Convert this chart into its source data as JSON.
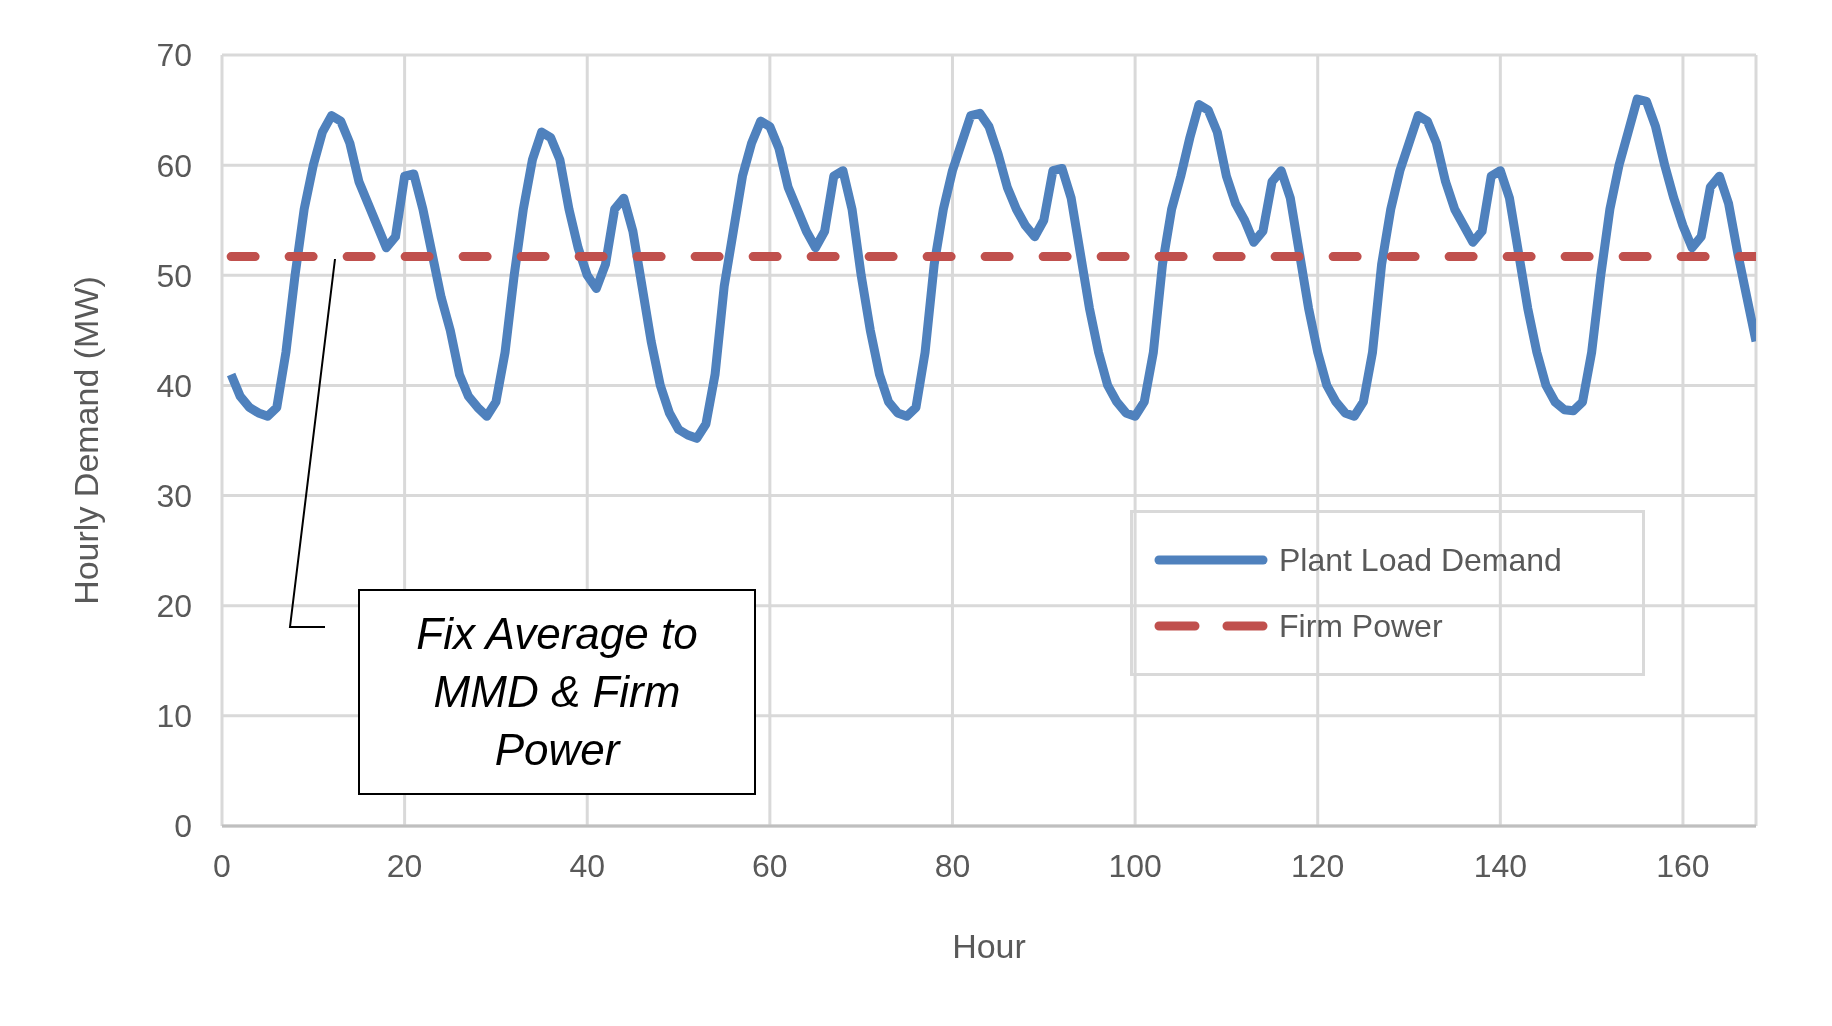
{
  "chart_data": {
    "type": "line",
    "xlabel": "Hour",
    "ylabel": "Hourly Demand (MW)",
    "xlim": [
      0,
      168
    ],
    "xticks": [
      0,
      20,
      40,
      60,
      80,
      100,
      120,
      140,
      160
    ],
    "ylim": [
      0,
      70
    ],
    "yticks": [
      0,
      10,
      20,
      30,
      40,
      50,
      60,
      70
    ],
    "grid": true,
    "legend": "right",
    "line_style": "solid",
    "marker": "none",
    "x": [
      1,
      2,
      3,
      4,
      5,
      6,
      7,
      8,
      9,
      10,
      11,
      12,
      13,
      14,
      15,
      16,
      17,
      18,
      19,
      20,
      21,
      22,
      23,
      24,
      25,
      26,
      27,
      28,
      29,
      30,
      31,
      32,
      33,
      34,
      35,
      36,
      37,
      38,
      39,
      40,
      41,
      42,
      43,
      44,
      45,
      46,
      47,
      48,
      49,
      50,
      51,
      52,
      53,
      54,
      55,
      56,
      57,
      58,
      59,
      60,
      61,
      62,
      63,
      64,
      65,
      66,
      67,
      68,
      69,
      70,
      71,
      72,
      73,
      74,
      75,
      76,
      77,
      78,
      79,
      80,
      81,
      82,
      83,
      84,
      85,
      86,
      87,
      88,
      89,
      90,
      91,
      92,
      93,
      94,
      95,
      96,
      97,
      98,
      99,
      100,
      101,
      102,
      103,
      104,
      105,
      106,
      107,
      108,
      109,
      110,
      111,
      112,
      113,
      114,
      115,
      116,
      117,
      118,
      119,
      120,
      121,
      122,
      123,
      124,
      125,
      126,
      127,
      128,
      129,
      130,
      131,
      132,
      133,
      134,
      135,
      136,
      137,
      138,
      139,
      140,
      141,
      142,
      143,
      144,
      145,
      146,
      147,
      148,
      149,
      150,
      151,
      152,
      153,
      154,
      155,
      156,
      157,
      158,
      159,
      160,
      161,
      162,
      163,
      164,
      165,
      166,
      167,
      168
    ],
    "series": [
      {
        "name": "Plant Load Demand",
        "color": "#4f81bd",
        "values": [
          41,
          39,
          38,
          37.5,
          37.2,
          38,
          43,
          50,
          56,
          60,
          63,
          64.5,
          64,
          62,
          58.5,
          56.5,
          54.5,
          52.5,
          53.5,
          59,
          59.2,
          56,
          52,
          48,
          45,
          41,
          39,
          38,
          37.2,
          38.5,
          43,
          50,
          56,
          60.5,
          63,
          62.5,
          60.5,
          56,
          52.5,
          50,
          48.8,
          51,
          56,
          57,
          54,
          49,
          44,
          40,
          37.5,
          36,
          35.5,
          35.2,
          36.5,
          41,
          49,
          54,
          59,
          62,
          64,
          63.5,
          61.5,
          58,
          56,
          54,
          52.5,
          54,
          59,
          59.5,
          56,
          50,
          45,
          41,
          38.5,
          37.5,
          37.2,
          38,
          43,
          51,
          56,
          59.5,
          62,
          64.5,
          64.7,
          63.5,
          61,
          58,
          56,
          54.5,
          53.5,
          55,
          59.5,
          59.7,
          57,
          52,
          47,
          43,
          40,
          38.5,
          37.5,
          37.2,
          38.5,
          43,
          51,
          56,
          59,
          62.5,
          65.5,
          65,
          63,
          59,
          56.5,
          55,
          53,
          54,
          58.5,
          59.5,
          57,
          52,
          47,
          43,
          40,
          38.5,
          37.5,
          37.2,
          38.5,
          43,
          51,
          56,
          59.5,
          62,
          64.5,
          64,
          62,
          58.5,
          56,
          54.5,
          53,
          54,
          59,
          59.5,
          57,
          52,
          47,
          43,
          40,
          38.5,
          37.8,
          37.7,
          38.5,
          43,
          50,
          56,
          60,
          63,
          66,
          65.8,
          63.5,
          60,
          57,
          54.5,
          52.5,
          53.5,
          58,
          59,
          56.5,
          52,
          48,
          44
        ]
      },
      {
        "name": "Firm Power",
        "color": "#c0504d",
        "line_style": "dashed",
        "x": [
          1,
          168
        ],
        "values": [
          51.7,
          51.7
        ]
      }
    ],
    "annotations": [
      "Fix Average to MMD & Firm Power"
    ]
  }
}
